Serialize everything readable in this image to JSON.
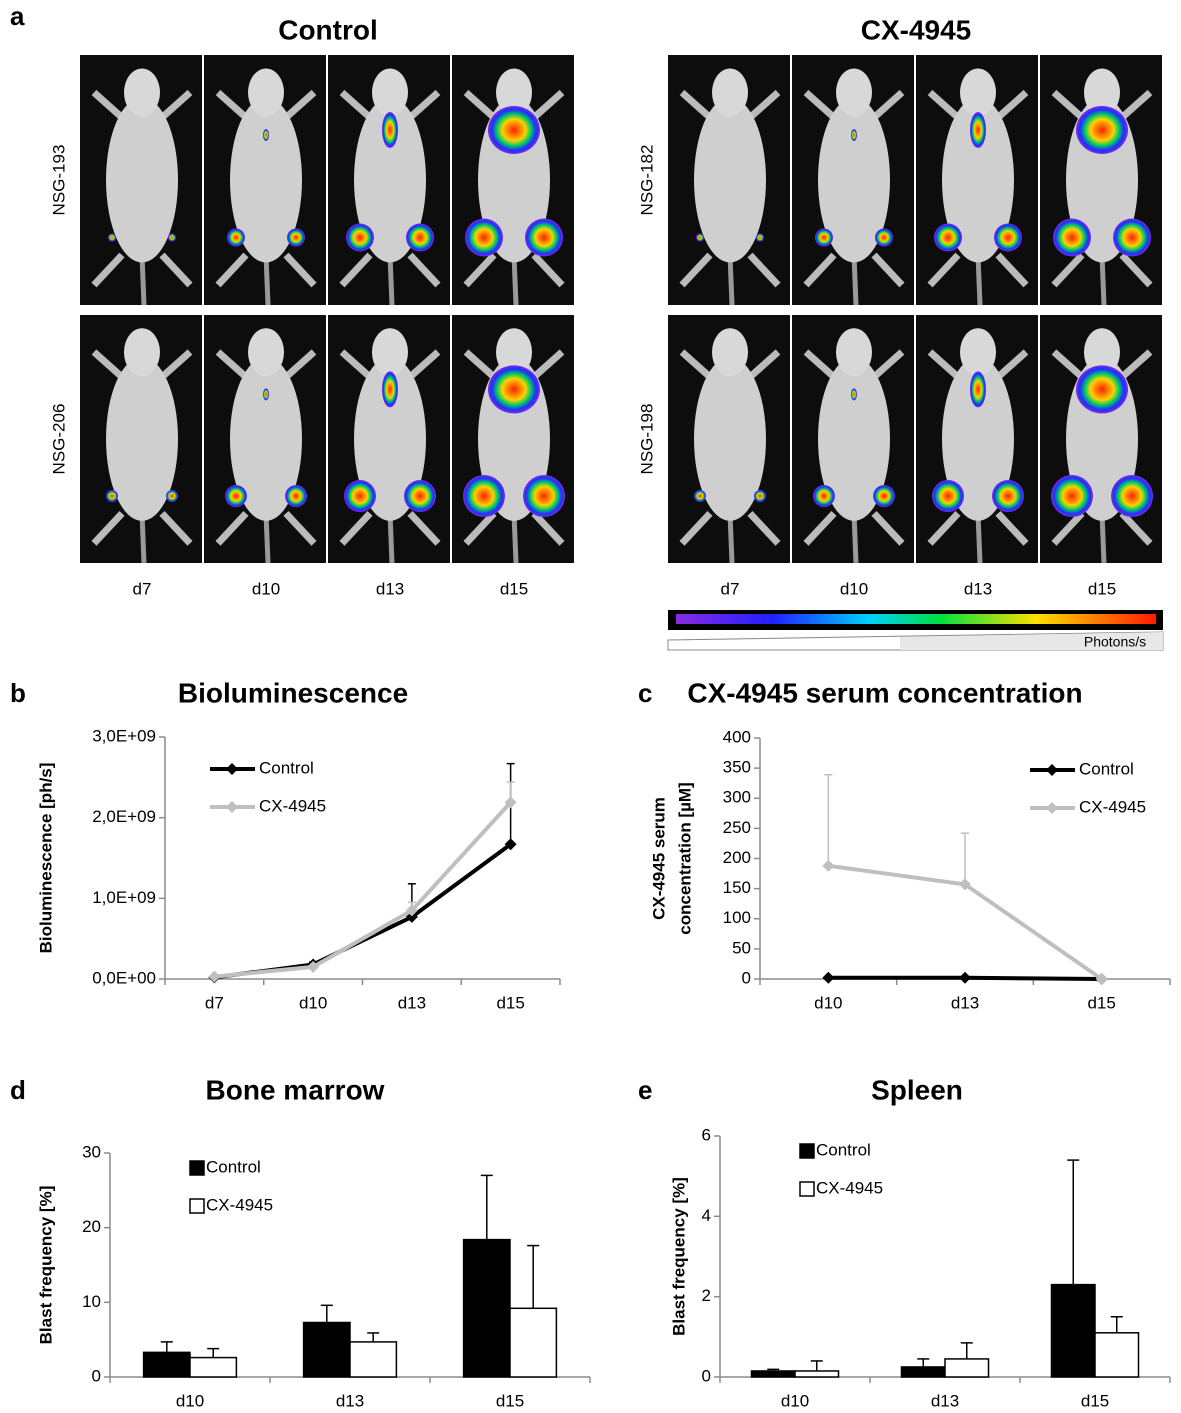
{
  "panel_a": {
    "label": "a",
    "groups": [
      {
        "title": "Control",
        "mice": [
          "NSG-193",
          "NSG-206"
        ],
        "days": [
          "d7",
          "d10",
          "d13",
          "d15"
        ]
      },
      {
        "title": "CX-4945",
        "mice": [
          "NSG-182",
          "NSG-198"
        ],
        "days": [
          "d7",
          "d10",
          "d13",
          "d15"
        ]
      }
    ],
    "colorbar_label": "Photons/s"
  },
  "chart_data": [
    {
      "panel": "b",
      "type": "line",
      "title": "Bioluminescence",
      "ylabel": "Bioluminescence [ph/s]",
      "categories": [
        "d7",
        "d10",
        "d13",
        "d15"
      ],
      "series": [
        {
          "name": "Control",
          "color": "#000000",
          "values": [
            20000000,
            180000000,
            770000000,
            1670000000
          ],
          "errors": [
            5000000,
            30000000,
            410000000,
            1000000000
          ]
        },
        {
          "name": "CX-4945",
          "color": "#bfbfbf",
          "values": [
            30000000,
            150000000,
            850000000,
            2190000000
          ],
          "errors": [
            5000000,
            20000000,
            100000000,
            250000000
          ]
        }
      ],
      "ylim": [
        0,
        3000000000
      ],
      "yticks": [
        {
          "value": 0,
          "label": "0,0E+00"
        },
        {
          "value": 1000000000,
          "label": "1,0E+09"
        },
        {
          "value": 2000000000,
          "label": "2,0E+09"
        },
        {
          "value": 3000000000,
          "label": "3,0E+09"
        }
      ],
      "legend": "upper left"
    },
    {
      "panel": "c",
      "type": "line",
      "title": "CX-4945 serum concentration",
      "ylabel": [
        "CX-4945 serum",
        "concentration [µM]"
      ],
      "categories": [
        "d10",
        "d13",
        "d15"
      ],
      "series": [
        {
          "name": "Control",
          "color": "#000000",
          "values": [
            2,
            2,
            0
          ],
          "errors": [
            0,
            0,
            0
          ]
        },
        {
          "name": "CX-4945",
          "color": "#bfbfbf",
          "values": [
            188,
            157,
            0
          ],
          "errors": [
            151,
            85,
            0
          ]
        }
      ],
      "ylim": [
        0,
        400
      ],
      "yticks": [
        0,
        50,
        100,
        150,
        200,
        250,
        300,
        350,
        400
      ],
      "legend": "upper right"
    },
    {
      "panel": "d",
      "type": "bar",
      "title": "Bone marrow",
      "ylabel": "Blast frequency [%]",
      "categories": [
        "d10",
        "d13",
        "d15"
      ],
      "series": [
        {
          "name": "Control",
          "color": "#000000",
          "values": [
            3.3,
            7.3,
            18.4
          ],
          "errors": [
            1.4,
            2.3,
            8.6
          ]
        },
        {
          "name": "CX-4945",
          "color": "#ffffff",
          "values": [
            2.6,
            4.7,
            9.2
          ],
          "errors": [
            1.2,
            1.2,
            8.4
          ]
        }
      ],
      "ylim": [
        0,
        30
      ],
      "yticks": [
        0,
        10,
        20,
        30
      ],
      "legend": "upper left"
    },
    {
      "panel": "e",
      "type": "bar",
      "title": "Spleen",
      "ylabel": "Blast frequency [%]",
      "categories": [
        "d10",
        "d13",
        "d15"
      ],
      "series": [
        {
          "name": "Control",
          "color": "#000000",
          "values": [
            0.15,
            0.25,
            2.3
          ],
          "errors": [
            0.04,
            0.2,
            3.1
          ]
        },
        {
          "name": "CX-4945",
          "color": "#ffffff",
          "values": [
            0.15,
            0.45,
            1.1
          ],
          "errors": [
            0.25,
            0.4,
            0.4
          ]
        }
      ],
      "ylim": [
        0,
        6
      ],
      "yticks": [
        0,
        2,
        4,
        6
      ],
      "legend": "upper left"
    }
  ]
}
